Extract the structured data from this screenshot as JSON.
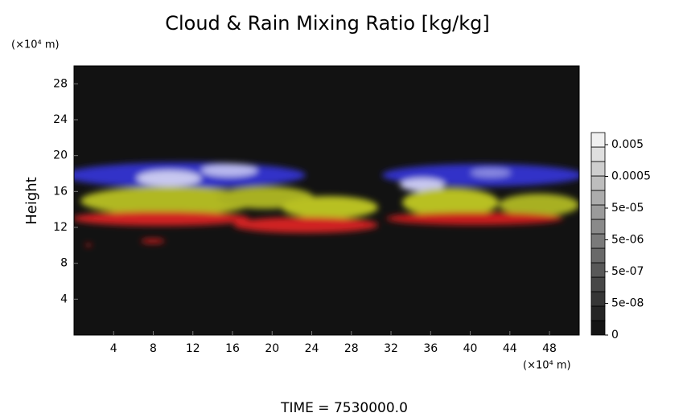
{
  "chart_data": {
    "type": "volume-render",
    "title": "Cloud & Rain Mixing Ratio [kg/kg]",
    "y_label": "Height",
    "x_unit": "(×10⁴ m)",
    "y_unit": "(×10⁴ m)",
    "time_label": "TIME = 7530000.0",
    "xlim": [
      0,
      51
    ],
    "xticks": [
      4,
      8,
      12,
      16,
      20,
      24,
      28,
      32,
      36,
      40,
      44,
      48
    ],
    "ylim": [
      0,
      30
    ],
    "yticks": [
      4,
      8,
      12,
      16,
      20,
      24,
      28
    ],
    "grid": false,
    "colorbar_ticks": [
      0.005,
      0.0005,
      {
        "value": 5e-05,
        "label": "5e-05"
      },
      {
        "value": 5e-06,
        "label": "5e-06"
      },
      {
        "value": 5e-07,
        "label": "5e-07"
      },
      {
        "value": 5e-08,
        "label": "5e-08"
      },
      0
    ]
  }
}
